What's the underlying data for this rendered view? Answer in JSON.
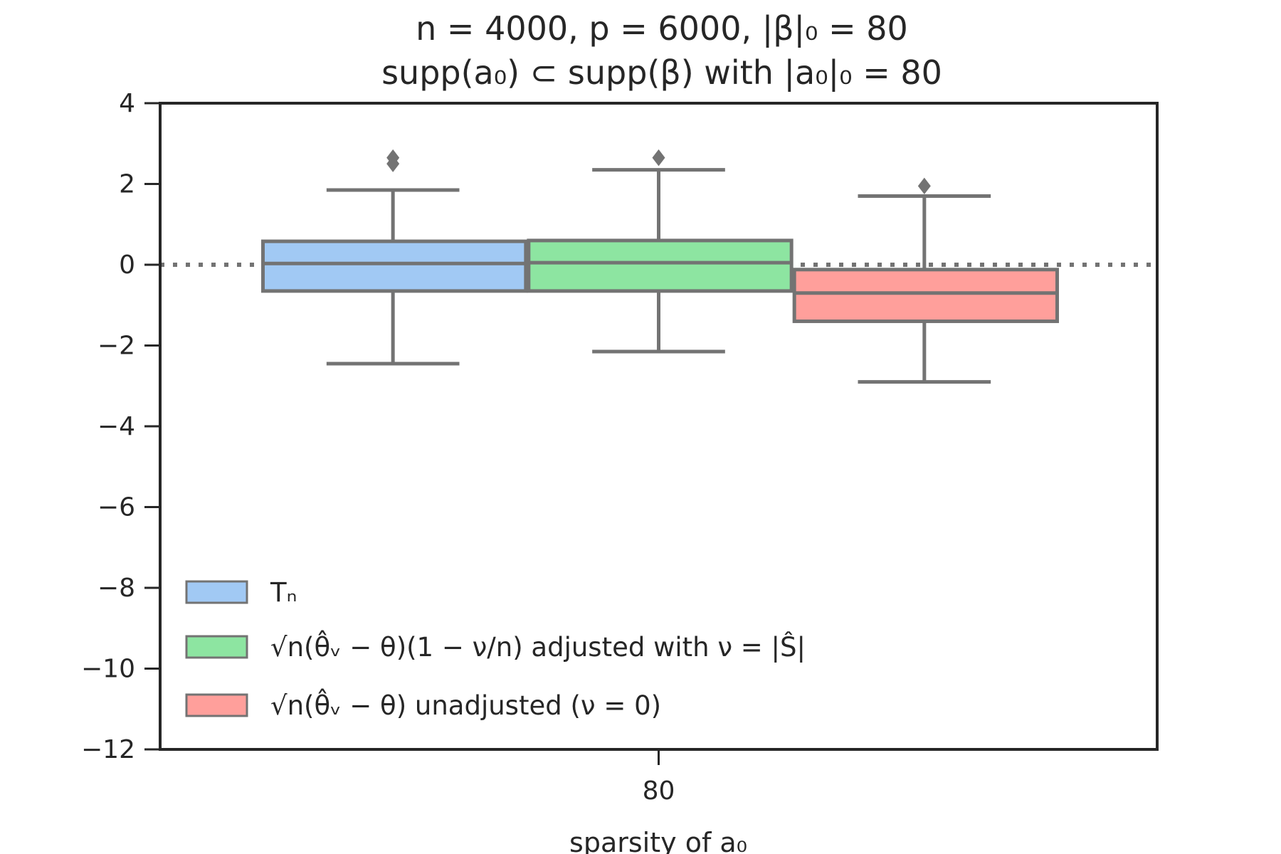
{
  "chart_data": {
    "type": "box",
    "title_line1": "n = 4000, p = 6000, |β|₀ = 80",
    "title_line2": "supp(a₀) ⊂ supp(β) with |a₀|₀ = 80",
    "xlabel": "sparsity of a₀",
    "ylabel": "",
    "categories": [
      "80"
    ],
    "ylim": [
      -12,
      4
    ],
    "yticks": [
      4,
      2,
      0,
      -2,
      -4,
      -6,
      -8,
      -10,
      -12
    ],
    "ytick_labels": [
      "4",
      "2",
      "0",
      "−2",
      "−4",
      "−6",
      "−8",
      "−10",
      "−12"
    ],
    "reference_line": 0,
    "grid": false,
    "legend_position": "lower-left",
    "series": [
      {
        "name": "Tₙ",
        "color": "#a1c9f4",
        "category": "80",
        "whisker_low": -2.45,
        "q1": -0.65,
        "median": 0.03,
        "q3": 0.58,
        "whisker_high": 1.85,
        "outliers": [
          2.5,
          2.65
        ]
      },
      {
        "name": "√n(θ̂ᵥ − θ)(1 − ν/n) adjusted with ν = |Ŝ|",
        "color": "#8de5a1",
        "category": "80",
        "whisker_low": -2.15,
        "q1": -0.65,
        "median": 0.05,
        "q3": 0.6,
        "whisker_high": 2.35,
        "outliers": [
          2.65
        ]
      },
      {
        "name": "√n(θ̂ᵥ − θ) unadjusted (ν = 0)",
        "color": "#ff9f9b",
        "category": "80",
        "whisker_low": -2.9,
        "q1": -1.4,
        "median": -0.7,
        "q3": -0.12,
        "whisker_high": 1.7,
        "outliers": [
          1.95
        ]
      }
    ]
  }
}
